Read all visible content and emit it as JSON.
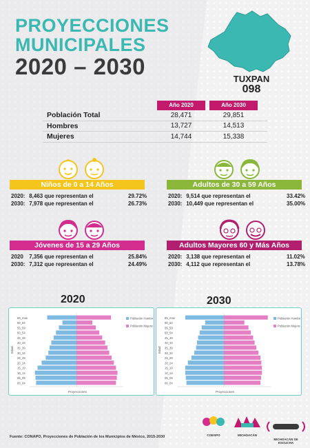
{
  "title": {
    "line1": "PROYECCIONES",
    "line2": "MUNICIPALES",
    "line3": "2020 – 2030"
  },
  "municipality": {
    "name": "TUXPAN",
    "code": "098"
  },
  "population_table": {
    "headers": [
      "Año 2020",
      "Año 2030"
    ],
    "rows": [
      {
        "label": "Población Total",
        "v2020": "28,471",
        "v2030": "29,851"
      },
      {
        "label": "Hombres",
        "v2020": "13,727",
        "v2030": "14,513"
      },
      {
        "label": "Mujeres",
        "v2020": "14,744",
        "v2030": "15,338"
      }
    ]
  },
  "groups": {
    "ninos": {
      "title": "Niños de 0 a 14 Años",
      "color": "#f4c51c",
      "r2020": {
        "year": "2020:",
        "text": "8,463 que representan el",
        "pct": "29.72%"
      },
      "r2030": {
        "year": "2030:",
        "text": "7,978 que representan el",
        "pct": "26.73%"
      }
    },
    "adultos": {
      "title": "Adultos de 30 a 59 Años",
      "color": "#8ab63a",
      "r2020": {
        "year": "2020:",
        "text": "9,514 que representan el",
        "pct": "33.42%"
      },
      "r2030": {
        "year": "2030:",
        "text": "10,449 que representan el",
        "pct": "35.00%"
      }
    },
    "jovenes": {
      "title": "Jóvenes de 15 a 29 Años",
      "color": "#d22c8f",
      "r2020": {
        "year": "2020",
        "text": "7,356 que representan el",
        "pct": "25.84%"
      },
      "r2030": {
        "year": "2030:",
        "text": "7,312 que representan el",
        "pct": "24.49%"
      }
    },
    "mayores": {
      "title": "Adultos Mayores  60 y Más Años",
      "color": "#b0206e",
      "r2020": {
        "year": "2020:",
        "text": "3,138 que representan el",
        "pct": "11.02%"
      },
      "r2030": {
        "year": "2030:",
        "text": "4,112 que representan el",
        "pct": "13.78%"
      }
    }
  },
  "charts_meta": {
    "year_left": "2020",
    "year_right": "2030",
    "colors": {
      "hombres": "#7db9e0",
      "mujeres": "#e57fc4"
    }
  },
  "chart_data": [
    {
      "type": "bar",
      "orientation": "horizontal-population-pyramid",
      "title": "2020",
      "categories": [
        "00_04",
        "05_09",
        "10_14",
        "15_19",
        "20_24",
        "25_29",
        "30_34",
        "35_39",
        "40_44",
        "45_49",
        "50_54",
        "55_59",
        "60_64",
        "65_mas"
      ],
      "series": [
        {
          "name": "Población Hombres",
          "values": [
            1380,
            1400,
            1420,
            1330,
            1190,
            1050,
            960,
            920,
            860,
            780,
            700,
            600,
            480,
            1000
          ]
        },
        {
          "name": "Población Mujeres",
          "values": [
            1350,
            1380,
            1400,
            1350,
            1280,
            1200,
            1120,
            1060,
            980,
            880,
            780,
            660,
            540,
            1180
          ]
        }
      ],
      "xlabel": "Proyecciones",
      "ylabel": "Edad",
      "legend": "top-right"
    },
    {
      "type": "bar",
      "orientation": "horizontal-population-pyramid",
      "title": "2030",
      "categories": [
        "00_04",
        "05_09",
        "10_14",
        "15_19",
        "20_24",
        "25_29",
        "30_34",
        "35_39",
        "40_44",
        "45_49",
        "50_54",
        "55_59",
        "60_64",
        "65_mas"
      ],
      "series": [
        {
          "name": "Población Hombres",
          "values": [
            1280,
            1300,
            1320,
            1320,
            1230,
            1110,
            1010,
            950,
            920,
            880,
            830,
            760,
            640,
            1320
          ]
        },
        {
          "name": "Población Mujeres",
          "values": [
            1250,
            1270,
            1300,
            1300,
            1280,
            1250,
            1180,
            1110,
            1050,
            1000,
            920,
            840,
            700,
            1500
          ]
        }
      ],
      "xlabel": "Proyecciones",
      "ylabel": "Edad",
      "legend": "top-right"
    }
  ],
  "footer": {
    "source": "Fuente: CONAPO, Proyecciones de Población de los Municipios de México, 2015-2030",
    "logo1": "COESPO",
    "logo2": "MICHOACÁN",
    "logo3": "MICHOACÁN SE ESCUCHA"
  }
}
